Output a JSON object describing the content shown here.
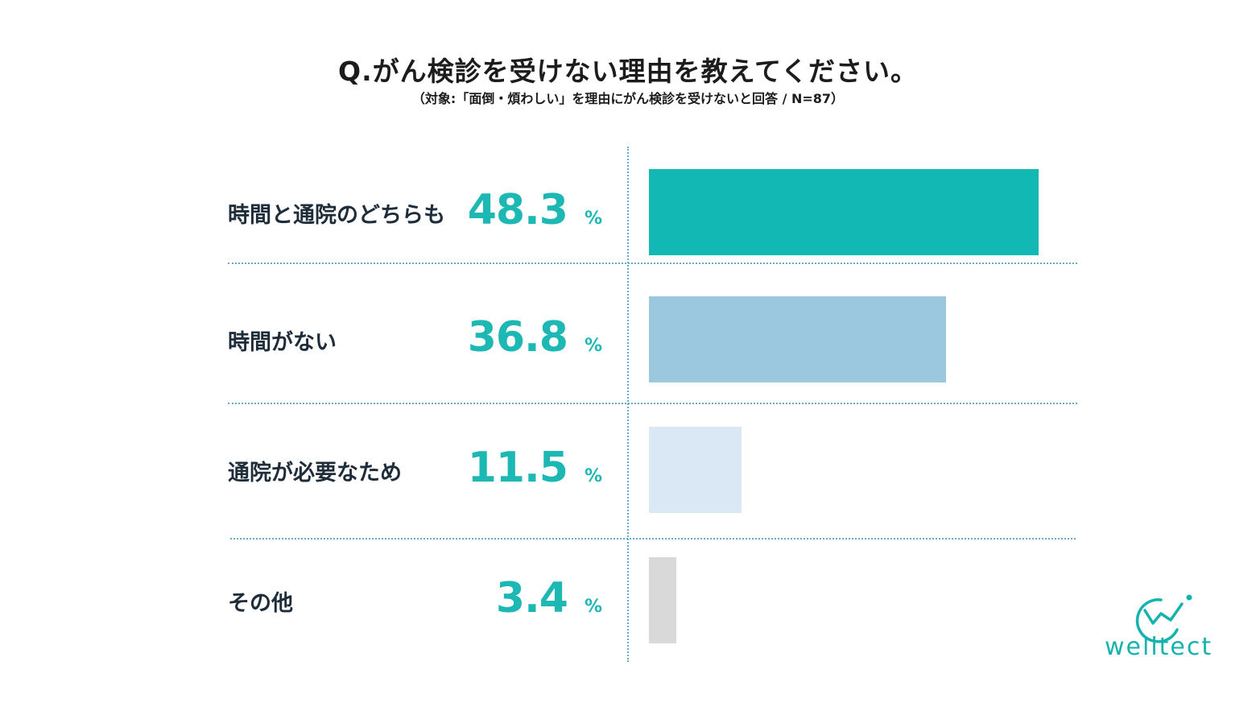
{
  "title": "Q.がん検診を受けない理由を教えてください。",
  "subtitle": "（対象:「面倒・煩わしい」を理由にがん検診を受けないと回答 / N=87）",
  "unit": "%",
  "brand": "welltect",
  "colors": {
    "accent": "#1db8b3",
    "text": "#1f2d3a",
    "divider": "#6aa7c8"
  },
  "chart_data": {
    "type": "bar",
    "orientation": "horizontal",
    "title": "Q.がん検診を受けない理由を教えてください。",
    "subtitle": "（対象:「面倒・煩わしい」を理由にがん検診を受けないと回答 / N=87）",
    "xlabel": "",
    "ylabel": "",
    "xlim": [
      0,
      55
    ],
    "unit": "%",
    "categories": [
      "時間と通院のどちらも",
      "時間がない",
      "通院が必要なため",
      "その他"
    ],
    "values": [
      48.3,
      36.8,
      11.5,
      3.4
    ],
    "value_labels": [
      "48.3",
      "36.8",
      "11.5",
      "3.4"
    ],
    "bar_colors": [
      "#12b9b4",
      "#9bc8de",
      "#d9e8f4",
      "#d9d9d9"
    ]
  }
}
